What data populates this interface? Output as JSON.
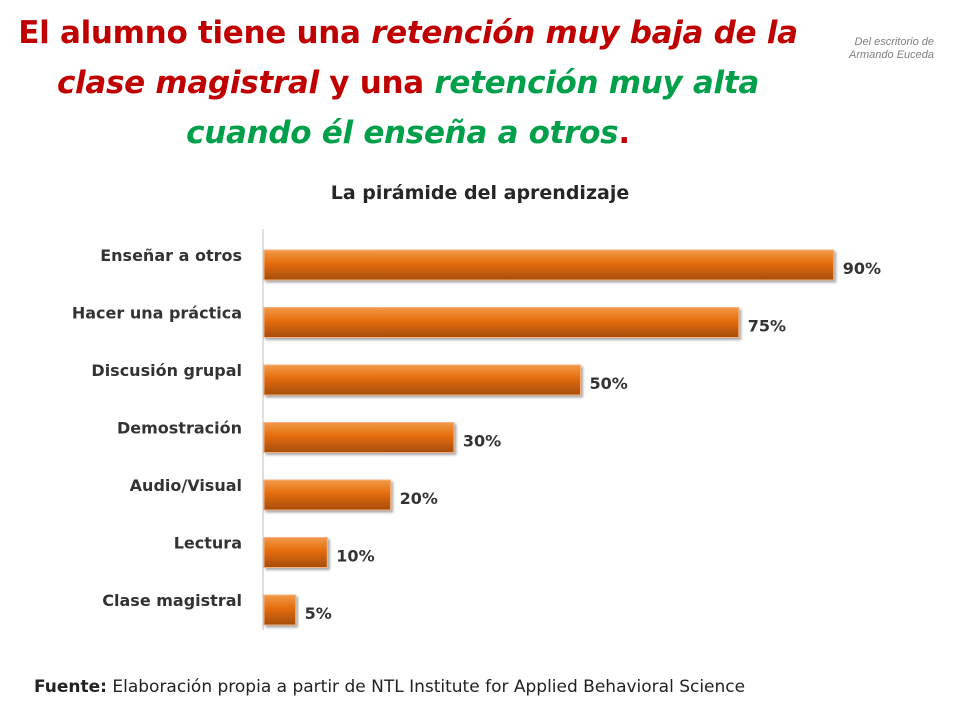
{
  "headline": {
    "p1": "El alumno tiene una ",
    "p2": "retención muy baja de la clase magistral",
    "p3": " y una ",
    "p4": "retención muy alta cuando él enseña a otros",
    "p5": "."
  },
  "credit": {
    "line1": "Del escritorio de",
    "line2": "Armando Euceda"
  },
  "source": {
    "label": "Fuente:",
    "text": " Elaboración propia a partir de NTL Institute for Applied Behavioral Science"
  },
  "colors": {
    "headline_red": "#c00000",
    "headline_green": "#00a04a",
    "bar_light": "#f29a4a",
    "bar_mid": "#e46c0a",
    "bar_dark": "#a64d06"
  },
  "chart_data": {
    "type": "bar",
    "orientation": "horizontal",
    "title": "La pirámide del aprendizaje",
    "categories": [
      "Enseñar a otros",
      "Hacer una práctica",
      "Discusión grupal",
      "Demostración",
      "Audio/Visual",
      "Lectura",
      "Clase magistral"
    ],
    "values": [
      90,
      75,
      50,
      30,
      20,
      10,
      5
    ],
    "value_labels": [
      "90%",
      "75%",
      "50%",
      "30%",
      "20%",
      "10%",
      "5%"
    ],
    "xlim": [
      0,
      100
    ],
    "grid": false,
    "legend": "none",
    "xlabel": "",
    "ylabel": ""
  }
}
